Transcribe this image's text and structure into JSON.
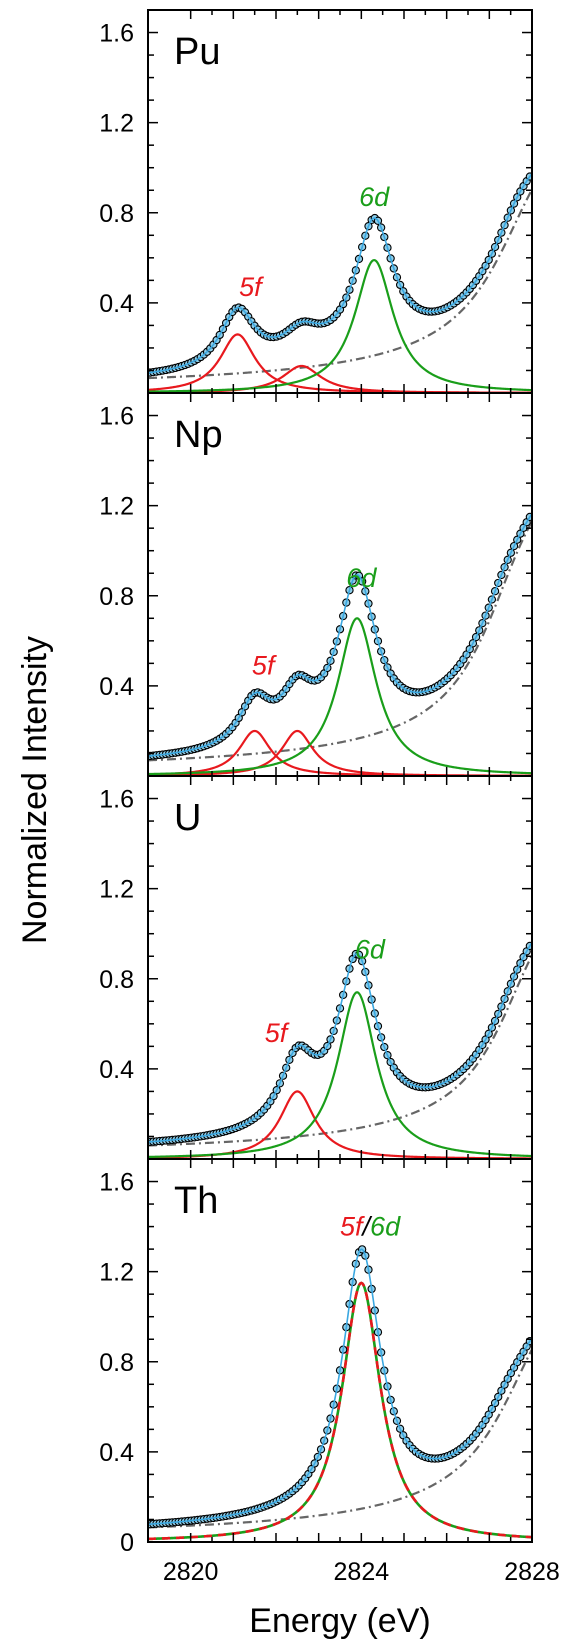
{
  "chart_data": {
    "type": "line",
    "xlabel": "Energy (eV)",
    "ylabel": "Normalized Intensity",
    "xlim": [
      2819.0,
      2828.0
    ],
    "ylim": [
      0,
      1.7
    ],
    "x_ticks": [
      "2820",
      "2824",
      "2828"
    ],
    "y_ticks": [
      "0",
      "0.4",
      "0.8",
      "1.2",
      "1.6"
    ],
    "colors": {
      "data_marker_fill": "#8ecde8",
      "fit_line": "#3aa7e0",
      "five_f": "#e8191e",
      "six_d": "#1a9e1a",
      "edge": "#666666"
    },
    "panels": [
      {
        "element": "Pu",
        "five_f_label": "5f",
        "six_d_label": "6d",
        "five_f_peaks": [
          {
            "center": 2821.1,
            "height": 0.26,
            "width": 0.5
          },
          {
            "center": 2822.6,
            "height": 0.12,
            "width": 0.55
          }
        ],
        "six_d_peaks": [
          {
            "center": 2824.3,
            "height": 0.59,
            "width": 0.55
          }
        ],
        "edge": {
          "e0": 2827.6,
          "amp": 1.5,
          "w": 1.2
        },
        "extra_max": {
          "center": 2827.6,
          "height": 0.08,
          "width": 0.6
        },
        "label_data_positions": {
          "five_f": [
            2821.4,
            0.43
          ],
          "six_d": [
            2824.3,
            0.83
          ]
        }
      },
      {
        "element": "Np",
        "five_f_label": "5f",
        "six_d_label": "6d",
        "five_f_peaks": [
          {
            "center": 2821.5,
            "height": 0.2,
            "width": 0.45
          },
          {
            "center": 2822.5,
            "height": 0.2,
            "width": 0.45
          }
        ],
        "six_d_peaks": [
          {
            "center": 2823.9,
            "height": 0.7,
            "width": 0.55
          }
        ],
        "edge": {
          "e0": 2827.3,
          "amp": 1.66,
          "w": 1.1
        },
        "extra_max": {
          "center": 2827.3,
          "height": 0.05,
          "width": 0.6
        },
        "label_data_positions": {
          "five_f": [
            2821.7,
            0.45
          ],
          "six_d": [
            2824.0,
            0.84
          ]
        }
      },
      {
        "element": "U",
        "five_f_label": "5f",
        "six_d_label": "6d",
        "five_f_peaks": [
          {
            "center": 2822.5,
            "height": 0.3,
            "width": 0.5
          }
        ],
        "six_d_peaks": [
          {
            "center": 2823.9,
            "height": 0.74,
            "width": 0.55
          }
        ],
        "edge": {
          "e0": 2827.6,
          "amp": 1.48,
          "w": 1.1
        },
        "extra_max": {
          "center": 2827.6,
          "height": 0.06,
          "width": 0.6
        },
        "label_data_positions": {
          "five_f": [
            2822.0,
            0.52
          ],
          "six_d": [
            2824.2,
            0.89
          ]
        }
      },
      {
        "element": "Th",
        "five_f_label": "5f",
        "separator": "/",
        "six_d_label": "6d",
        "combined_peaks": [
          {
            "center": 2824.0,
            "height": 1.15,
            "width": 0.55
          }
        ],
        "edge": {
          "e0": 2827.7,
          "amp": 1.48,
          "w": 1.2
        },
        "extra_max": {
          "center": 2827.4,
          "height": 0.06,
          "width": 0.6
        },
        "label_data_positions": {
          "five_f": [
            2823.5,
            1.36
          ],
          "six_d": [
            2824.3,
            1.36
          ]
        }
      }
    ]
  }
}
